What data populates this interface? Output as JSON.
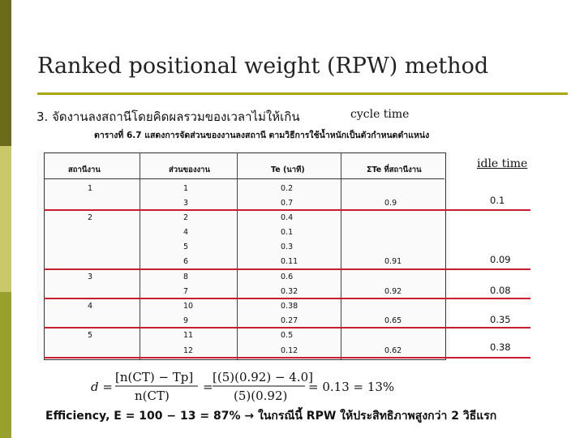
{
  "slide": {
    "title": "Ranked positional weight (RPW) method",
    "subtitle": "3. จัดงานลงสถานีโดยคิดผลรวมของเวลาไม่ให้เกิน",
    "cycle_label": "cycle time",
    "idle_label": "idle time"
  },
  "table": {
    "caption": "ตารางที่ 6.7 แสดงการจัดส่วนของงานลงสถานี ตามวิธีการใช้น้ำหนักเป็นตัวกำหนดตำแหน่ง",
    "headers": [
      "สถานีงาน",
      "ส่วนของงาน",
      "Te (นาที)",
      "ΣTe ที่สถานีงาน"
    ],
    "rows": [
      {
        "station": "1",
        "element": "1",
        "te": "0.2",
        "sum": "",
        "idle": ""
      },
      {
        "station": "",
        "element": "3",
        "te": "0.7",
        "sum": "0.9",
        "idle": "0.1"
      },
      {
        "station": "2",
        "element": "2",
        "te": "0.4",
        "sum": "",
        "idle": ""
      },
      {
        "station": "",
        "element": "4",
        "te": "0.1",
        "sum": "",
        "idle": ""
      },
      {
        "station": "",
        "element": "5",
        "te": "0.3",
        "sum": "",
        "idle": ""
      },
      {
        "station": "",
        "element": "6",
        "te": "0.11",
        "sum": "0.91",
        "idle": "0.09"
      },
      {
        "station": "3",
        "element": "8",
        "te": "0.6",
        "sum": "",
        "idle": ""
      },
      {
        "station": "",
        "element": "7",
        "te": "0.32",
        "sum": "0.92",
        "idle": "0.08"
      },
      {
        "station": "4",
        "element": "10",
        "te": "0.38",
        "sum": "",
        "idle": ""
      },
      {
        "station": "",
        "element": "9",
        "te": "0.27",
        "sum": "0.65",
        "idle": "0.35"
      },
      {
        "station": "5",
        "element": "11",
        "te": "0.5",
        "sum": "",
        "idle": ""
      },
      {
        "station": "",
        "element": "12",
        "te": "0.12",
        "sum": "0.62",
        "idle": "0.38"
      }
    ]
  },
  "formula": {
    "lhs": "d =",
    "num1": "[n(CT) − Tp]",
    "den1": "n(CT)",
    "eq1": "=",
    "num2": "[(5)(0.92) − 4.0]",
    "den2": "(5)(0.92)",
    "result": "= 0.13 = 13%"
  },
  "efficiency": "Efficiency, E = 100 − 13 = 87% → ในกรณีนี้ RPW ให้ประสิทธิภาพสูงกว่า 2 วิธีแรก",
  "colors": {
    "accent_rule": "#a9a90f",
    "red_line": "#c81e2f",
    "bar_dark": "#6b6b19",
    "bar_light": "#c9c96a",
    "bar_olive": "#9aa02c"
  }
}
